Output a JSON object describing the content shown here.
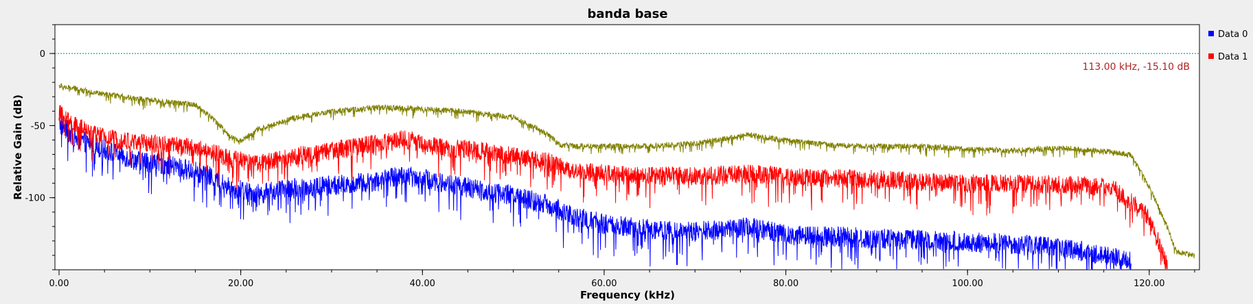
{
  "chart_data": {
    "type": "line",
    "title": "banda base",
    "xlabel": "Frequency (kHz)",
    "ylabel": "Relative Gain (dB)",
    "xlim": [
      0,
      125
    ],
    "ylim": [
      -150,
      20
    ],
    "x_ticks": [
      {
        "value": 0,
        "label": "0.00"
      },
      {
        "value": 20,
        "label": "20.00"
      },
      {
        "value": 40,
        "label": "40.00"
      },
      {
        "value": 60,
        "label": "60.00"
      },
      {
        "value": 80,
        "label": "80.00"
      },
      {
        "value": 100,
        "label": "100.00"
      },
      {
        "value": 120,
        "label": "120.00"
      }
    ],
    "y_ticks": [
      {
        "value": 0,
        "label": "0"
      },
      {
        "value": -50,
        "label": "-50"
      },
      {
        "value": -100,
        "label": "-100"
      }
    ],
    "reference_line": {
      "y": 0,
      "color": "#1ea1a1"
    },
    "marker_label": "113.00 kHz, -15.10 dB",
    "marker_color": "#b22222",
    "legend": [
      {
        "name": "Data 0",
        "color": "#0000ff"
      },
      {
        "name": "Data 1",
        "color": "#ff0000"
      }
    ],
    "legend_position": "right",
    "grid": false,
    "series": [
      {
        "name": "Data 0",
        "color": "#0000ff",
        "noise_amp": 11,
        "x": [
          0,
          2,
          5,
          8,
          12,
          16,
          19,
          22,
          26,
          30,
          34,
          38,
          42,
          46,
          50,
          54,
          56,
          60,
          64,
          70,
          76,
          80,
          84,
          90,
          96,
          100,
          106,
          112,
          116,
          118
        ],
        "values": [
          -47,
          -58,
          -65,
          -72,
          -76,
          -82,
          -92,
          -96,
          -92,
          -90,
          -88,
          -83,
          -88,
          -93,
          -97,
          -104,
          -110,
          -117,
          -120,
          -122,
          -119,
          -124,
          -125,
          -127,
          -128,
          -129,
          -131,
          -135,
          -140,
          -143
        ]
      },
      {
        "name": "Data 1",
        "color": "#ff0000",
        "noise_amp": 10,
        "x": [
          0,
          2,
          5,
          8,
          12,
          16,
          19,
          22,
          26,
          30,
          34,
          38,
          42,
          46,
          50,
          54,
          56,
          60,
          64,
          70,
          76,
          80,
          84,
          90,
          96,
          100,
          106,
          112,
          116,
          120,
          122
        ],
        "values": [
          -40,
          -50,
          -57,
          -60,
          -62,
          -65,
          -72,
          -75,
          -70,
          -66,
          -62,
          -58,
          -64,
          -66,
          -70,
          -74,
          -80,
          -82,
          -83,
          -84,
          -82,
          -84,
          -85,
          -86,
          -88,
          -89,
          -89,
          -90,
          -92,
          -112,
          -146
        ]
      },
      {
        "name": "",
        "color": "#808000",
        "noise_amp": 3,
        "x": [
          0,
          5,
          10,
          15,
          17,
          19,
          20,
          22,
          26,
          30,
          35,
          40,
          45,
          50,
          54,
          55,
          57,
          60,
          65,
          70,
          74,
          76,
          80,
          85,
          90,
          95,
          100,
          105,
          110,
          112,
          116,
          118,
          120,
          122,
          123,
          125
        ],
        "values": [
          -22,
          -28,
          -32,
          -35,
          -45,
          -58,
          -60,
          -52,
          -44,
          -40,
          -37,
          -38,
          -40,
          -44,
          -56,
          -63,
          -64,
          -64,
          -64,
          -62,
          -58,
          -56,
          -60,
          -63,
          -64,
          -64,
          -66,
          -67,
          -65,
          -66,
          -68,
          -70,
          -92,
          -120,
          -137,
          -140
        ]
      }
    ]
  }
}
